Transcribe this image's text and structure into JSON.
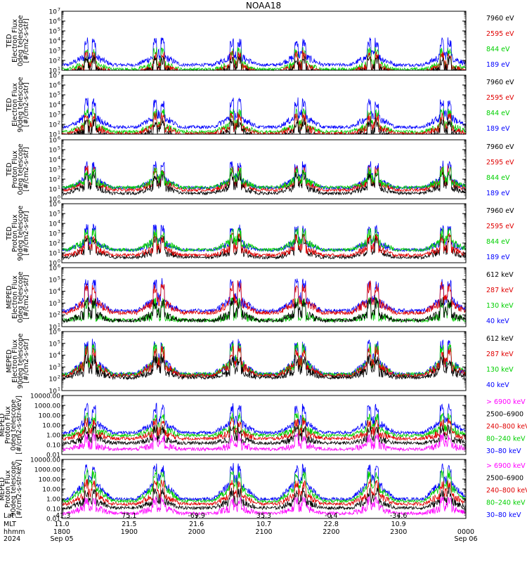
{
  "title": "NOAA18",
  "colors": {
    "black": "#000000",
    "red": "#e00000",
    "green": "#00d000",
    "blue": "#0000ff",
    "magenta": "#ff00ff"
  },
  "chart_data": [
    {
      "type": "line",
      "ylabel": [
        "TED",
        "Electron Flux",
        "0deg telescope",
        "[#/cm2-s-str]"
      ],
      "yscale": "log",
      "ylim": [
        10,
        10000000
      ],
      "yticks": [
        {
          "v": 10,
          "l": "10"
        },
        {
          "v": 100,
          "l": "10"
        },
        {
          "v": 1000,
          "l": "10"
        },
        {
          "v": 10000,
          "l": "10"
        },
        {
          "v": 100000,
          "l": "10"
        },
        {
          "v": 1000000,
          "l": "10"
        },
        {
          "v": 10000000,
          "l": "10"
        }
      ],
      "yexp": [
        "1",
        "2",
        "3",
        "4",
        "5",
        "6",
        "7"
      ],
      "legend": [
        {
          "label": "7960 eV",
          "color": "black"
        },
        {
          "label": "2595 eV",
          "color": "red"
        },
        {
          "label": "844 eV",
          "color": "green"
        },
        {
          "label": "189 eV",
          "color": "blue"
        }
      ],
      "series": [
        {
          "name": "189 eV",
          "color": "blue",
          "base": 2.6,
          "low": 1.2
        },
        {
          "name": "844 eV",
          "color": "green",
          "base": 1.7,
          "low": 0.9
        },
        {
          "name": "2595 eV",
          "color": "red",
          "base": 1.5,
          "low": 0.6
        },
        {
          "name": "7960 eV",
          "color": "black",
          "base": 1.2,
          "low": 0.4
        }
      ]
    },
    {
      "type": "line",
      "ylabel": [
        "TED",
        "Electron Flux",
        "90deg telescope",
        "[#/cm2-s-str]"
      ],
      "yscale": "log",
      "ylim": [
        10,
        10000000
      ],
      "yticks": [
        {
          "v": 10,
          "l": "10"
        },
        {
          "v": 100,
          "l": "10"
        },
        {
          "v": 1000,
          "l": "10"
        },
        {
          "v": 10000,
          "l": "10"
        },
        {
          "v": 100000,
          "l": "10"
        },
        {
          "v": 1000000,
          "l": "10"
        },
        {
          "v": 10000000,
          "l": "10"
        }
      ],
      "yexp": [
        "1",
        "2",
        "3",
        "4",
        "5",
        "6",
        "7"
      ],
      "legend": [
        {
          "label": "7960 eV",
          "color": "black"
        },
        {
          "label": "2595 eV",
          "color": "red"
        },
        {
          "label": "844 eV",
          "color": "green"
        },
        {
          "label": "189 eV",
          "color": "blue"
        }
      ],
      "series": [
        {
          "name": "189 eV",
          "color": "blue",
          "base": 3.0,
          "low": 1.3
        },
        {
          "name": "844 eV",
          "color": "green",
          "base": 2.0,
          "low": 1.0
        },
        {
          "name": "2595 eV",
          "color": "red",
          "base": 1.8,
          "low": 0.8
        },
        {
          "name": "7960 eV",
          "color": "black",
          "base": 1.4,
          "low": 0.5
        }
      ]
    },
    {
      "type": "line",
      "ylabel": [
        "TED",
        "Proton Flux",
        "0deg telescope",
        "[#/cm2-s-str]"
      ],
      "yscale": "log",
      "ylim": [
        1,
        1000000
      ],
      "yticks": [
        {
          "v": 1,
          "l": "10"
        },
        {
          "v": 10,
          "l": "10"
        },
        {
          "v": 100,
          "l": "10"
        },
        {
          "v": 1000,
          "l": "10"
        },
        {
          "v": 10000,
          "l": "10"
        },
        {
          "v": 100000,
          "l": "10"
        },
        {
          "v": 1000000,
          "l": "10"
        }
      ],
      "yexp": [
        "0",
        "1",
        "2",
        "3",
        "4",
        "5",
        "6"
      ],
      "legend": [
        {
          "label": "7960 eV",
          "color": "black"
        },
        {
          "label": "2595 eV",
          "color": "red"
        },
        {
          "label": "844 eV",
          "color": "green"
        },
        {
          "label": "189 eV",
          "color": "blue"
        }
      ],
      "series": [
        {
          "name": "189 eV",
          "color": "blue",
          "base": 2.1,
          "low": 0.8
        },
        {
          "name": "2595 eV",
          "color": "red",
          "base": 1.8,
          "low": 0.6
        },
        {
          "name": "7960 eV",
          "color": "black",
          "base": 1.4,
          "low": 0.3
        },
        {
          "name": "844 eV",
          "color": "green",
          "base": 2.0,
          "low": 0.9
        }
      ]
    },
    {
      "type": "line",
      "ylabel": [
        "TED",
        "Proton Flux",
        "90deg telescope",
        "[#/cm2-s-str]"
      ],
      "yscale": "log",
      "ylim": [
        1,
        1000000
      ],
      "yticks": [
        {
          "v": 1,
          "l": "10"
        },
        {
          "v": 10,
          "l": "10"
        },
        {
          "v": 100,
          "l": "10"
        },
        {
          "v": 1000,
          "l": "10"
        },
        {
          "v": 10000,
          "l": "10"
        },
        {
          "v": 100000,
          "l": "10"
        },
        {
          "v": 1000000,
          "l": "10"
        }
      ],
      "yexp": [
        "0",
        "1",
        "2",
        "3",
        "4",
        "5",
        "6"
      ],
      "legend": [
        {
          "label": "7960 eV",
          "color": "black"
        },
        {
          "label": "2595 eV",
          "color": "red"
        },
        {
          "label": "844 eV",
          "color": "green"
        },
        {
          "label": "189 eV",
          "color": "blue"
        }
      ],
      "series": [
        {
          "name": "189 eV",
          "color": "blue",
          "base": 2.2,
          "low": 1.0
        },
        {
          "name": "7960 eV",
          "color": "black",
          "base": 1.3,
          "low": 0.3
        },
        {
          "name": "2595 eV",
          "color": "red",
          "base": 1.6,
          "low": 0.5
        },
        {
          "name": "844 eV",
          "color": "green",
          "base": 2.3,
          "low": 1.0
        }
      ]
    },
    {
      "type": "line",
      "ylabel": [
        "MEPED",
        "Electron Flux",
        "0deg telescope",
        "[#/cm2-s-str]"
      ],
      "yscale": "log",
      "ylim": [
        10,
        1000000
      ],
      "yticks": [
        {
          "v": 10,
          "l": "10"
        },
        {
          "v": 100,
          "l": "10"
        },
        {
          "v": 1000,
          "l": "10"
        },
        {
          "v": 10000,
          "l": "10"
        },
        {
          "v": 100000,
          "l": "10"
        },
        {
          "v": 1000000,
          "l": "10"
        }
      ],
      "yexp": [
        "1",
        "2",
        "3",
        "4",
        "5",
        "6"
      ],
      "legend": [
        {
          "label": "612 keV",
          "color": "black"
        },
        {
          "label": "287 keV",
          "color": "red"
        },
        {
          "label": "130 keV",
          "color": "green"
        },
        {
          "label": "40 keV",
          "color": "blue"
        }
      ],
      "series": [
        {
          "name": "40 keV",
          "color": "blue",
          "base": 3.4,
          "low": 2.0
        },
        {
          "name": "287 keV",
          "color": "red",
          "base": 3.3,
          "low": 1.8
        },
        {
          "name": "130 keV",
          "color": "green",
          "base": 2.0,
          "low": 1.4
        },
        {
          "name": "612 keV",
          "color": "black",
          "base": 2.2,
          "low": 1.3
        }
      ]
    },
    {
      "type": "line",
      "ylabel": [
        "MEPED",
        "Electron Flux",
        "90deg telescope",
        "[#/cm2-s-str]"
      ],
      "yscale": "log",
      "ylim": [
        10,
        1000000
      ],
      "yticks": [
        {
          "v": 10,
          "l": "10"
        },
        {
          "v": 100,
          "l": "10"
        },
        {
          "v": 1000,
          "l": "10"
        },
        {
          "v": 10000,
          "l": "10"
        },
        {
          "v": 100000,
          "l": "10"
        },
        {
          "v": 1000000,
          "l": "10"
        }
      ],
      "yexp": [
        "1",
        "2",
        "3",
        "4",
        "5",
        "6"
      ],
      "legend": [
        {
          "label": "612 keV",
          "color": "black"
        },
        {
          "label": "287 keV",
          "color": "red"
        },
        {
          "label": "130 keV",
          "color": "green"
        },
        {
          "label": "40 keV",
          "color": "blue"
        }
      ],
      "series": [
        {
          "name": "40 keV",
          "color": "blue",
          "base": 3.6,
          "low": 2.0
        },
        {
          "name": "130 keV",
          "color": "green",
          "base": 3.5,
          "low": 2.0
        },
        {
          "name": "287 keV",
          "color": "red",
          "base": 3.4,
          "low": 1.9
        },
        {
          "name": "612 keV",
          "color": "black",
          "base": 2.8,
          "low": 1.9
        }
      ]
    },
    {
      "type": "line",
      "ylabel": [
        "MEPED",
        "Proton Flux",
        "0deg telescope",
        "[#/cm2-s-str-keV]"
      ],
      "yscale": "log",
      "ylim": [
        0.01,
        10000
      ],
      "yticks": [
        {
          "v": 0.01,
          "l": "0.01"
        },
        {
          "v": 0.1,
          "l": "0.10"
        },
        {
          "v": 1,
          "l": "1.00"
        },
        {
          "v": 10,
          "l": "10.00"
        },
        {
          "v": 100,
          "l": "100.00"
        },
        {
          "v": 1000,
          "l": "1000.00"
        },
        {
          "v": 10000,
          "l": "10000.00"
        }
      ],
      "legend": [
        {
          "label": "> 6900 keV",
          "color": "magenta"
        },
        {
          "label": "2500–6900",
          "color": "black"
        },
        {
          "label": "240–800 keV",
          "color": "red"
        },
        {
          "label": "80–240 keV",
          "color": "green"
        },
        {
          "label": "30–80 keV",
          "color": "blue"
        }
      ],
      "series": [
        {
          "name": "30–80 keV",
          "color": "blue",
          "base": 1.5,
          "low": -0.2
        },
        {
          "name": "80–240 keV",
          "color": "green",
          "base": 0.7,
          "low": -0.3
        },
        {
          "name": "240–800 keV",
          "color": "red",
          "base": 0.3,
          "low": -0.6
        },
        {
          "name": "2500–6900",
          "color": "black",
          "base": -0.3,
          "low": -1.0
        },
        {
          "name": "> 6900 keV",
          "color": "magenta",
          "base": -1.0,
          "low": -1.6
        }
      ]
    },
    {
      "type": "line",
      "ylabel": [
        "MEPED",
        "Proton Flux",
        "90deg telescope",
        "[#/cm2-s-str-keV]"
      ],
      "yscale": "log",
      "ylim": [
        0.01,
        10000
      ],
      "yticks": [
        {
          "v": 0.01,
          "l": "0.01"
        },
        {
          "v": 0.1,
          "l": "0.10"
        },
        {
          "v": 1,
          "l": "1.00"
        },
        {
          "v": 10,
          "l": "10.00"
        },
        {
          "v": 100,
          "l": "100.00"
        },
        {
          "v": 1000,
          "l": "1000.00"
        },
        {
          "v": 10000,
          "l": "10000.00"
        }
      ],
      "legend": [
        {
          "label": "> 6900 keV",
          "color": "magenta"
        },
        {
          "label": "2500–6900",
          "color": "black"
        },
        {
          "label": "240–800 keV",
          "color": "red"
        },
        {
          "label": "80–240 keV",
          "color": "green"
        },
        {
          "label": "30–80 keV",
          "color": "blue"
        }
      ],
      "series": [
        {
          "name": "30–80 keV",
          "color": "blue",
          "base": 2.0,
          "low": -0.7
        },
        {
          "name": "80–240 keV",
          "color": "green",
          "base": 1.5,
          "low": -0.8
        },
        {
          "name": "240–800 keV",
          "color": "red",
          "base": 0.6,
          "low": -0.9
        },
        {
          "name": "2500–6900",
          "color": "black",
          "base": -0.1,
          "low": -1.2
        },
        {
          "name": "> 6900 keV",
          "color": "magenta",
          "base": -0.8,
          "low": -1.7
        }
      ]
    }
  ],
  "xaxis": {
    "row_labels": [
      "Lat",
      "MLT",
      "hhmm",
      "2024"
    ],
    "ticks": [
      {
        "lat": "-41.3",
        "mlt": "11.0",
        "hhmm": "1800",
        "date": "Sep 05"
      },
      {
        "lat": "75.1",
        "mlt": "21.5",
        "hhmm": "1900",
        "date": ""
      },
      {
        "lat": "-69.9",
        "mlt": "21.6",
        "hhmm": "2000",
        "date": ""
      },
      {
        "lat": "35.3",
        "mlt": "10.7",
        "hhmm": "2100",
        "date": ""
      },
      {
        "lat": "-0.4",
        "mlt": "22.8",
        "hhmm": "2200",
        "date": ""
      },
      {
        "lat": "-34.6",
        "mlt": "10.9",
        "hhmm": "2300",
        "date": ""
      },
      {
        "lat": "",
        "mlt": "",
        "hhmm": "0000",
        "date": "Sep 06"
      }
    ]
  },
  "pass_centers": [
    0.07,
    0.24,
    0.43,
    0.59,
    0.77,
    0.95
  ]
}
